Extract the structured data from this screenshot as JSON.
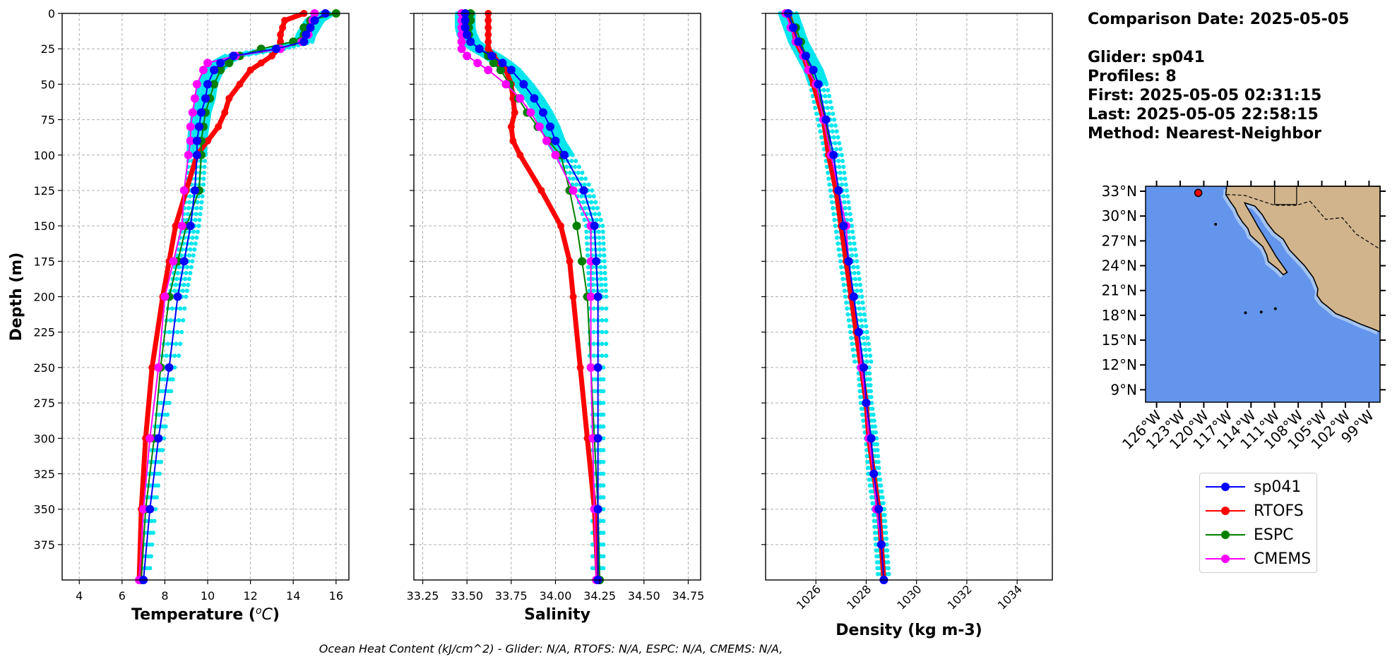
{
  "info": {
    "comparison": "Comparison Date: 2025-05-05",
    "glider": "Glider: sp041",
    "profiles": "Profiles: 8",
    "first": "First: 2025-05-05 02:31:15",
    "last": "Last: 2025-05-05 22:58:15",
    "method": "Method: Nearest-Neighbor"
  },
  "footer": "Ocean Heat Content (kJ/cm^2) - Glider: N/A,  RTOFS: N/A,  ESPC: N/A,  CMEMS: N/A,",
  "legend": [
    {
      "name": "sp041",
      "color": "#0000ff"
    },
    {
      "name": "RTOFS",
      "color": "#ff0000"
    },
    {
      "name": "ESPC",
      "color": "#008000"
    },
    {
      "name": "CMEMS",
      "color": "#ff00ff"
    }
  ],
  "colors": {
    "raw_glider": "#00e5ee",
    "ocean": "#6495ed",
    "shallow": "#a5c3f0",
    "land": "#d2b48c"
  },
  "chart_data": [
    {
      "type": "line",
      "xlabel": "Temperature ($^{o}C$)",
      "ylabel": "Depth (m)",
      "xlim": [
        3.2,
        16.6
      ],
      "ylim": [
        400,
        0
      ],
      "xticks": [
        4,
        6,
        8,
        10,
        12,
        14,
        16
      ],
      "yticks": [
        0,
        25,
        50,
        75,
        100,
        125,
        150,
        175,
        200,
        225,
        250,
        275,
        300,
        325,
        350,
        375
      ],
      "grid": true,
      "depth": [
        0,
        5,
        10,
        15,
        20,
        25,
        30,
        35,
        40,
        50,
        60,
        70,
        80,
        90,
        100,
        125,
        150,
        175,
        200,
        250,
        300,
        350,
        400
      ],
      "series": [
        {
          "name": "sp041",
          "values": [
            15.5,
            15.0,
            14.8,
            14.6,
            14.5,
            13.2,
            11.2,
            10.6,
            10.3,
            10.0,
            9.9,
            9.7,
            9.6,
            9.5,
            9.5,
            9.4,
            9.2,
            8.9,
            8.6,
            8.2,
            7.7,
            7.3,
            7.0
          ]
        },
        {
          "name": "RTOFS",
          "values": [
            14.5,
            13.6,
            13.5,
            13.4,
            13.4,
            13.3,
            13.0,
            12.5,
            12.0,
            11.5,
            11.0,
            10.8,
            10.5,
            10.0,
            9.5,
            9.0,
            8.5,
            8.2,
            7.9,
            7.4,
            7.1,
            6.9,
            6.8
          ]
        },
        {
          "name": "ESPC",
          "values": [
            16.0,
            14.8,
            14.5,
            14.5,
            14.0,
            12.5,
            11.5,
            11.0,
            10.6,
            10.3,
            10.1,
            9.9,
            9.8,
            9.7,
            9.7,
            9.6,
            9.0,
            8.6,
            8.2,
            7.8,
            7.5,
            7.1,
            6.9
          ]
        },
        {
          "name": "CMEMS",
          "values": [
            15.0,
            14.9,
            14.8,
            14.7,
            14.4,
            13.4,
            11.3,
            10.0,
            9.8,
            9.5,
            9.4,
            9.3,
            9.2,
            9.2,
            9.1,
            8.9,
            8.8,
            8.4,
            8.0,
            7.7,
            7.3,
            7.0,
            6.8
          ]
        }
      ]
    },
    {
      "type": "line",
      "xlabel": "Salinity",
      "ylim": [
        400,
        0
      ],
      "xlim": [
        33.2,
        34.82
      ],
      "xticks": [
        33.25,
        33.5,
        33.75,
        34.0,
        34.25,
        34.5,
        34.75
      ],
      "grid": true,
      "depth": [
        0,
        5,
        10,
        15,
        20,
        25,
        30,
        35,
        40,
        50,
        60,
        70,
        80,
        90,
        100,
        125,
        150,
        175,
        200,
        250,
        300,
        350,
        400
      ],
      "series": [
        {
          "name": "sp041",
          "values": [
            33.49,
            33.49,
            33.49,
            33.5,
            33.52,
            33.57,
            33.64,
            33.7,
            33.75,
            33.82,
            33.88,
            33.93,
            33.97,
            34.0,
            34.05,
            34.16,
            34.22,
            34.23,
            34.24,
            34.24,
            34.24,
            34.24,
            34.24
          ]
        },
        {
          "name": "RTOFS",
          "values": [
            33.62,
            33.62,
            33.62,
            33.62,
            33.62,
            33.62,
            33.65,
            33.68,
            33.72,
            33.75,
            33.76,
            33.77,
            33.75,
            33.76,
            33.8,
            33.92,
            34.03,
            34.08,
            34.1,
            34.14,
            34.18,
            34.22,
            34.24
          ]
        },
        {
          "name": "ESPC",
          "values": [
            33.52,
            33.52,
            33.51,
            33.51,
            33.52,
            33.57,
            33.62,
            33.65,
            33.69,
            33.74,
            33.79,
            33.84,
            33.9,
            33.96,
            34.03,
            34.08,
            34.12,
            34.15,
            34.18,
            34.2,
            34.22,
            34.24,
            34.25
          ]
        },
        {
          "name": "CMEMS",
          "values": [
            33.47,
            33.47,
            33.47,
            33.47,
            33.47,
            33.47,
            33.5,
            33.56,
            33.62,
            33.72,
            33.8,
            33.86,
            33.91,
            33.95,
            34.0,
            34.1,
            34.2,
            34.2,
            34.2,
            34.2,
            34.21,
            34.22,
            34.23
          ]
        }
      ]
    },
    {
      "type": "line",
      "xlabel": "Density (kg m-3)",
      "ylim": [
        400,
        0
      ],
      "xlim": [
        1024.0,
        1035.4
      ],
      "xticks": [
        1026,
        1028,
        1030,
        1032,
        1034
      ],
      "grid": true,
      "depth": [
        0,
        10,
        20,
        30,
        40,
        50,
        75,
        100,
        125,
        150,
        175,
        200,
        225,
        250,
        275,
        300,
        325,
        350,
        375,
        400
      ],
      "series": [
        {
          "name": "sp041",
          "values": [
            1024.9,
            1025.1,
            1025.3,
            1025.6,
            1025.9,
            1026.1,
            1026.4,
            1026.7,
            1026.9,
            1027.1,
            1027.3,
            1027.5,
            1027.7,
            1027.9,
            1028.0,
            1028.2,
            1028.3,
            1028.5,
            1028.6,
            1028.7
          ]
        },
        {
          "name": "RTOFS",
          "values": [
            1024.9,
            1025.1,
            1025.2,
            1025.5,
            1025.7,
            1025.9,
            1026.3,
            1026.5,
            1026.8,
            1027.0,
            1027.2,
            1027.4,
            1027.6,
            1027.8,
            1028.0,
            1028.1,
            1028.3,
            1028.5,
            1028.6,
            1028.7
          ]
        },
        {
          "name": "ESPC",
          "values": [
            1024.9,
            1025.2,
            1025.4,
            1025.6,
            1025.8,
            1026.0,
            1026.4,
            1026.6,
            1026.9,
            1027.1,
            1027.3,
            1027.5,
            1027.7,
            1027.9,
            1028.0,
            1028.2,
            1028.3,
            1028.4,
            1028.6,
            1028.7
          ]
        },
        {
          "name": "CMEMS",
          "values": [
            1024.8,
            1025.0,
            1025.2,
            1025.5,
            1025.7,
            1026.0,
            1026.3,
            1026.6,
            1026.9,
            1027.2,
            1027.3,
            1027.5,
            1027.7,
            1027.8,
            1028.0,
            1028.1,
            1028.3,
            1028.4,
            1028.6,
            1028.7
          ]
        }
      ]
    },
    {
      "type": "map",
      "lat_ticks": [
        "33°N",
        "30°N",
        "27°N",
        "24°N",
        "21°N",
        "18°N",
        "15°N",
        "12°N",
        "9°N"
      ],
      "lon_ticks": [
        "126°W",
        "123°W",
        "120°W",
        "117°W",
        "114°W",
        "111°W",
        "108°W",
        "105°W",
        "102°W",
        "99°W"
      ],
      "lat_range": [
        7.5,
        33.6
      ],
      "lon_range": [
        -127.4,
        -97.6
      ],
      "marker": {
        "lat": 32.8,
        "lon": -120.7
      }
    }
  ]
}
